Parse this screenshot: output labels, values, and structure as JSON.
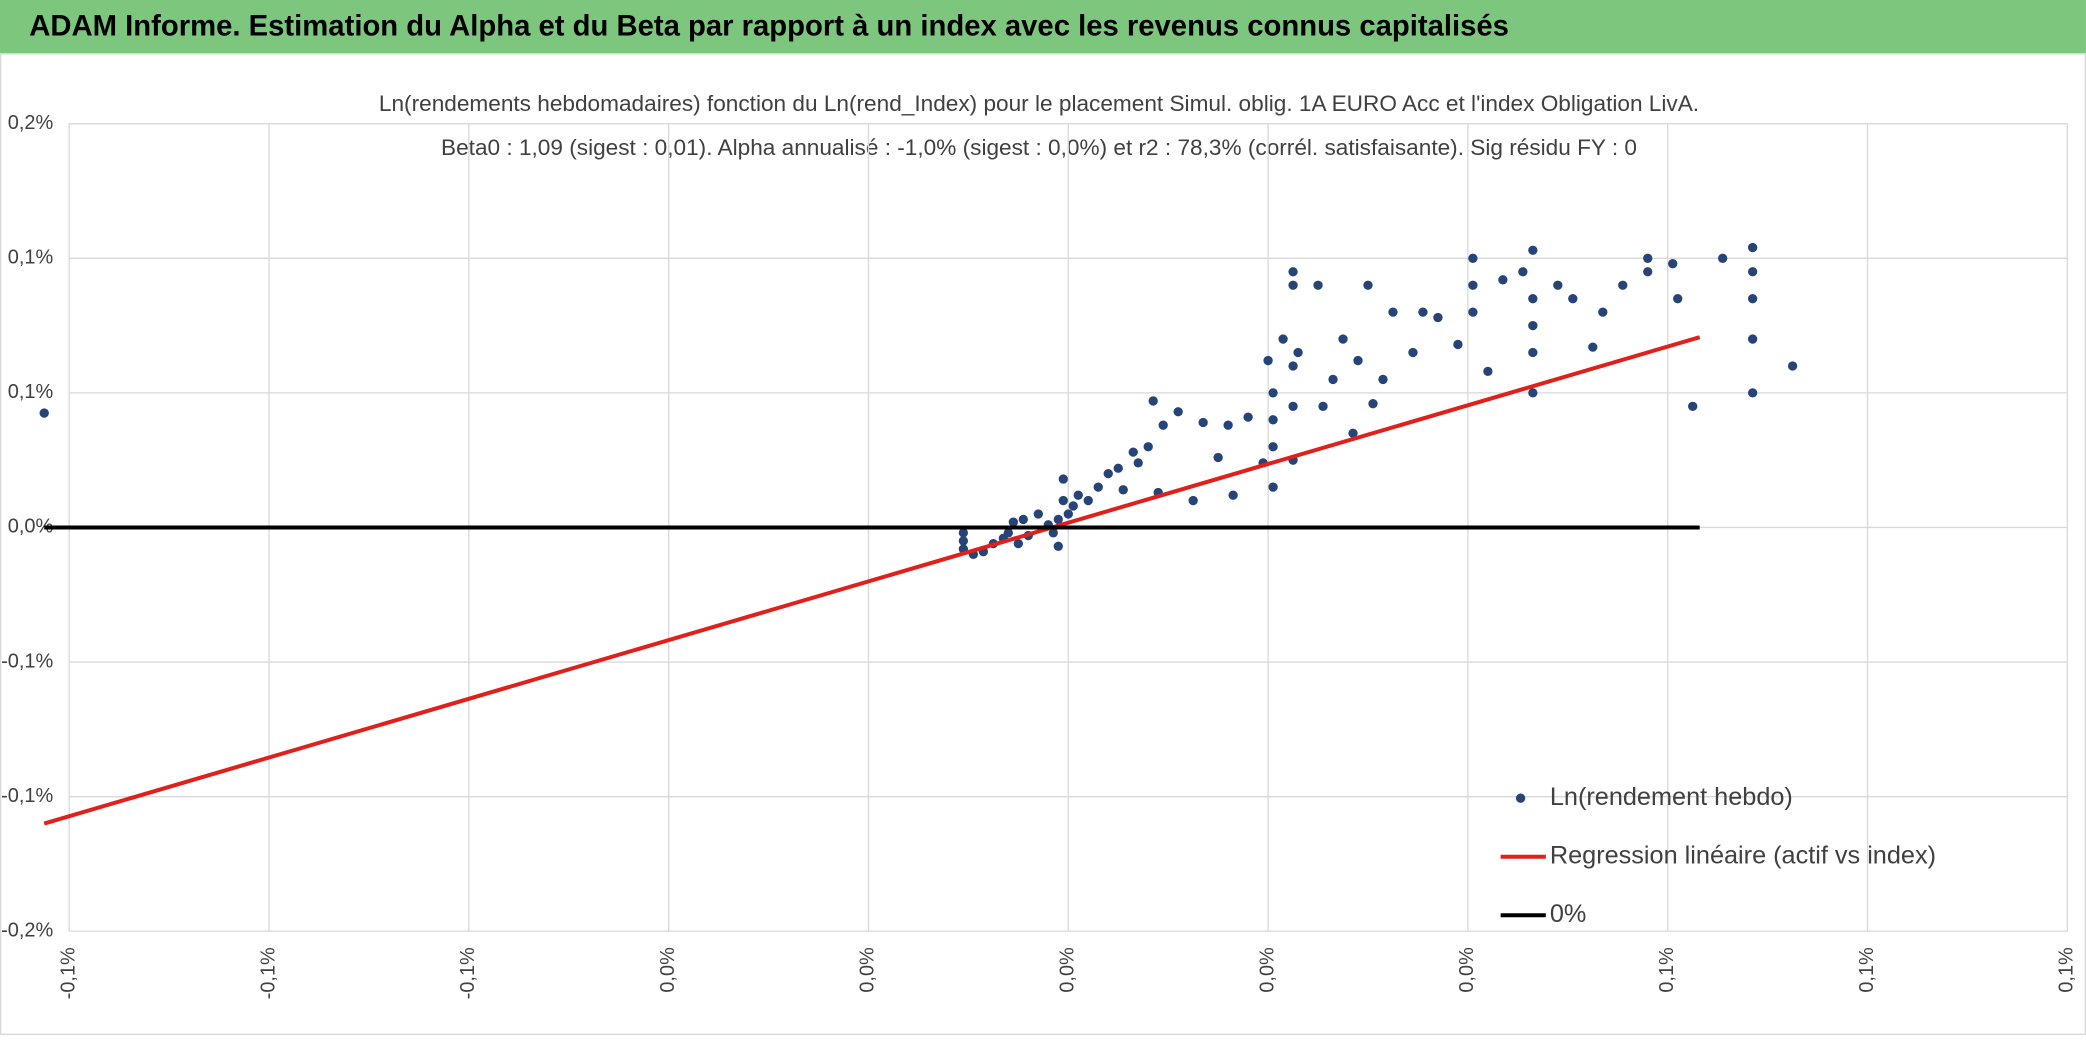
{
  "header": "ADAM Informe. Estimation du Alpha et du Beta par rapport à un index avec les revenus connus capitalisés",
  "chart_data": {
    "type": "scatter",
    "title": [
      "Ln(rendements hebdomadaires) fonction du Ln(rend_Index) pour le placement Simul. oblig. 1A EURO Acc et l'index Obligation LivA.",
      "Beta0 : 1,09 (sigest : 0,01). Alpha annualisé : -1,0% (sigest : 0,0%) et r2 : 78,3% (corrél. satisfaisante). Sig résidu FY : 0"
    ],
    "xlim": [
      -0.1,
      0.1
    ],
    "xticks": [
      {
        "value": -0.1,
        "label": "-0,1%"
      },
      {
        "value": -0.08,
        "label": "-0,1%"
      },
      {
        "value": -0.06,
        "label": "-0,1%"
      },
      {
        "value": -0.04,
        "label": "0,0%"
      },
      {
        "value": -0.02,
        "label": "0,0%"
      },
      {
        "value": 0,
        "label": "0,0%"
      },
      {
        "value": 0.02,
        "label": "0,0%"
      },
      {
        "value": 0.04,
        "label": "0,0%"
      },
      {
        "value": 0.06,
        "label": "0,1%"
      },
      {
        "value": 0.08,
        "label": "0,1%"
      },
      {
        "value": 0.1,
        "label": "0,1%"
      }
    ],
    "ylim": [
      -0.15,
      0.15
    ],
    "yticks": [
      {
        "value": -0.15,
        "label": "-0,2%"
      },
      {
        "value": -0.1,
        "label": "-0,1%"
      },
      {
        "value": -0.05,
        "label": "-0,1%"
      },
      {
        "value": 0,
        "label": "0,0%"
      },
      {
        "value": 0.05,
        "label": "0,1%"
      },
      {
        "value": 0.1,
        "label": "0,1%"
      },
      {
        "value": 0.15,
        "label": "0,2%"
      }
    ],
    "grid": true,
    "series": [
      {
        "name": "Ln(rendement hebdo)",
        "color": "#264478",
        "kind": "scatter",
        "x": [
          -0.1025,
          -0.0105,
          -0.0105,
          -0.0105,
          -0.0095,
          -0.0085,
          -0.0075,
          -0.0065,
          -0.006,
          -0.0055,
          -0.005,
          -0.0045,
          -0.004,
          -0.003,
          -0.002,
          -0.0015,
          -0.001,
          -0.001,
          -0.0005,
          -0.0005,
          0,
          0.0005,
          0.001,
          0.002,
          0.003,
          0.004,
          0.005,
          0.0055,
          0.0065,
          0.007,
          0.008,
          0.009,
          0.0085,
          0.0095,
          0.011,
          0.0125,
          0.0135,
          0.015,
          0.016,
          0.0165,
          0.018,
          0.0195,
          0.02,
          0.0205,
          0.0205,
          0.0205,
          0.0205,
          0.0215,
          0.0225,
          0.0225,
          0.0225,
          0.0225,
          0.023,
          0.0225,
          0.025,
          0.0255,
          0.0265,
          0.0275,
          0.0285,
          0.029,
          0.03,
          0.0305,
          0.0315,
          0.0325,
          0.0345,
          0.0355,
          0.037,
          0.039,
          0.0405,
          0.0405,
          0.0405,
          0.042,
          0.0435,
          0.0455,
          0.0465,
          0.0465,
          0.0465,
          0.0465,
          0.0465,
          0.049,
          0.0505,
          0.0525,
          0.0535,
          0.0555,
          0.058,
          0.058,
          0.0605,
          0.061,
          0.0625,
          0.0655,
          0.0685,
          0.0685,
          0.0685,
          0.0685,
          0.0685,
          0.0725
        ],
        "values": [
          0.0425,
          -0.005,
          -0.008,
          -0.002,
          -0.01,
          -0.009,
          -0.006,
          -0.004,
          -0.002,
          0.002,
          -0.006,
          0.003,
          -0.003,
          0.005,
          0.001,
          -0.002,
          0.003,
          -0.007,
          0.01,
          0.018,
          0.005,
          0.008,
          0.012,
          0.01,
          0.015,
          0.02,
          0.022,
          0.014,
          0.028,
          0.024,
          0.03,
          0.013,
          0.047,
          0.038,
          0.043,
          0.01,
          0.039,
          0.026,
          0.038,
          0.012,
          0.041,
          0.024,
          0.062,
          0.05,
          0.04,
          0.03,
          0.015,
          0.07,
          0.045,
          0.025,
          0.06,
          0.09,
          0.065,
          0.095,
          0.09,
          0.045,
          0.055,
          0.07,
          0.035,
          0.062,
          0.09,
          0.046,
          0.055,
          0.08,
          0.065,
          0.08,
          0.078,
          0.068,
          0.1,
          0.09,
          0.08,
          0.058,
          0.092,
          0.095,
          0.065,
          0.085,
          0.05,
          0.103,
          0.075,
          0.09,
          0.085,
          0.067,
          0.08,
          0.09,
          0.1,
          0.095,
          0.098,
          0.085,
          0.045,
          0.1,
          0.104,
          0.095,
          0.085,
          0.07,
          0.05,
          0.06
        ]
      },
      {
        "name": "Regression linéaire (actif vs index)",
        "color": "#e0201b",
        "kind": "line",
        "x": [
          -0.1025,
          0.0632
        ],
        "values": [
          -0.11,
          0.0707
        ]
      },
      {
        "name": "0%",
        "color": "#000000",
        "kind": "line",
        "x": [
          -0.1025,
          0.0632
        ],
        "values": [
          0,
          0
        ]
      }
    ]
  }
}
